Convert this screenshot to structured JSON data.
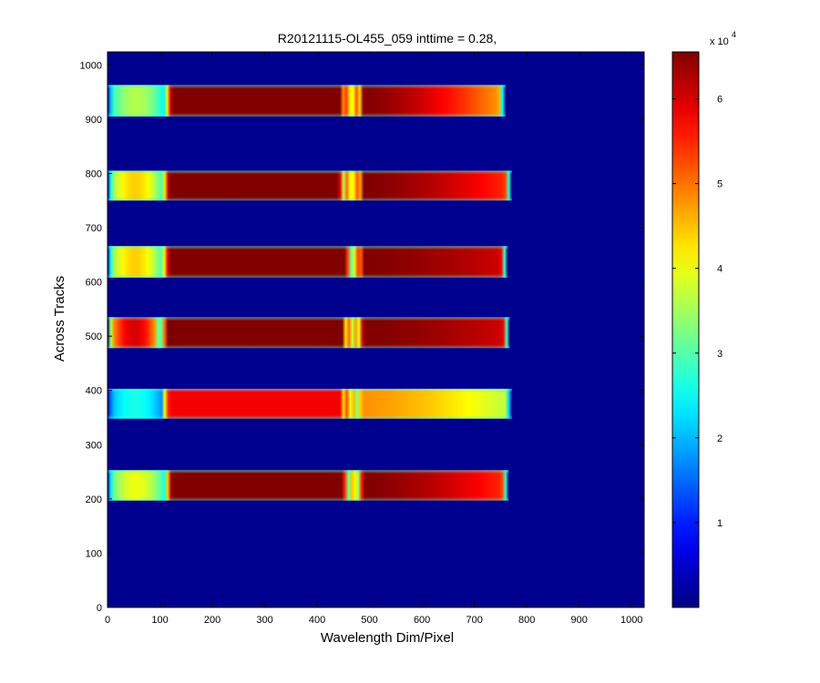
{
  "chart_data": {
    "type": "heatmap",
    "title": "R20121115-OL455_059 inttime = 0.28,",
    "xlabel": "Wavelength Dim/Pixel",
    "ylabel": "Across Tracks",
    "xlim": [
      0,
      1024
    ],
    "ylim": [
      0,
      1024
    ],
    "x_ticks": [
      0,
      100,
      200,
      300,
      400,
      500,
      600,
      700,
      800,
      900,
      1000
    ],
    "y_ticks": [
      0,
      100,
      200,
      300,
      400,
      500,
      600,
      700,
      800,
      900,
      1000
    ],
    "background_value": 500,
    "colormap": "jet",
    "clim": [
      0,
      65535
    ],
    "colorbar": {
      "ticks": [
        1,
        2,
        3,
        4,
        5,
        6
      ],
      "multiplier_base": "x 10",
      "multiplier_exponent": "4"
    },
    "tracks": [
      {
        "y_range": [
          197,
          253
        ],
        "x_start": 0,
        "x_end": 766,
        "left_peak": 40000,
        "seg1_range": [
          110,
          460
        ],
        "seg1_peak": 65535,
        "gap_center": 470,
        "seg2_range": [
          478,
          760
        ],
        "seg2_peak": 65535,
        "seg2_right": 54000
      },
      {
        "y_range": [
          348,
          403
        ],
        "x_start": 0,
        "x_end": 772,
        "left_peak": 26000,
        "seg1_range": [
          105,
          455
        ],
        "seg1_peak": 58000,
        "gap_center": 465,
        "seg2_range": [
          475,
          768
        ],
        "seg2_peak": 48000,
        "seg2_right": 36000
      },
      {
        "y_range": [
          478,
          535
        ],
        "x_start": 0,
        "x_end": 768,
        "left_peak": 60000,
        "seg1_range": [
          102,
          458
        ],
        "seg1_peak": 65535,
        "gap_center": 468,
        "seg2_range": [
          478,
          762
        ],
        "seg2_peak": 65535,
        "seg2_right": 60000
      },
      {
        "y_range": [
          608,
          666
        ],
        "x_start": 0,
        "x_end": 764,
        "left_peak": 44000,
        "seg1_range": [
          105,
          465
        ],
        "seg1_peak": 65535,
        "gap_center": 472,
        "seg2_range": [
          478,
          758
        ],
        "seg2_peak": 65535,
        "seg2_right": 60000
      },
      {
        "y_range": [
          750,
          805
        ],
        "x_start": 0,
        "x_end": 772,
        "left_peak": 44000,
        "seg1_range": [
          105,
          452
        ],
        "seg1_peak": 65535,
        "gap_center": 466,
        "seg2_range": [
          478,
          768
        ],
        "seg2_peak": 65535,
        "seg2_right": 54000
      },
      {
        "y_range": [
          905,
          963
        ],
        "x_start": 0,
        "x_end": 760,
        "left_peak": 36000,
        "seg1_range": [
          110,
          455
        ],
        "seg1_peak": 65535,
        "gap_center": 466,
        "seg2_range": [
          478,
          755
        ],
        "seg2_peak": 65535,
        "seg2_right": 46000
      }
    ]
  }
}
